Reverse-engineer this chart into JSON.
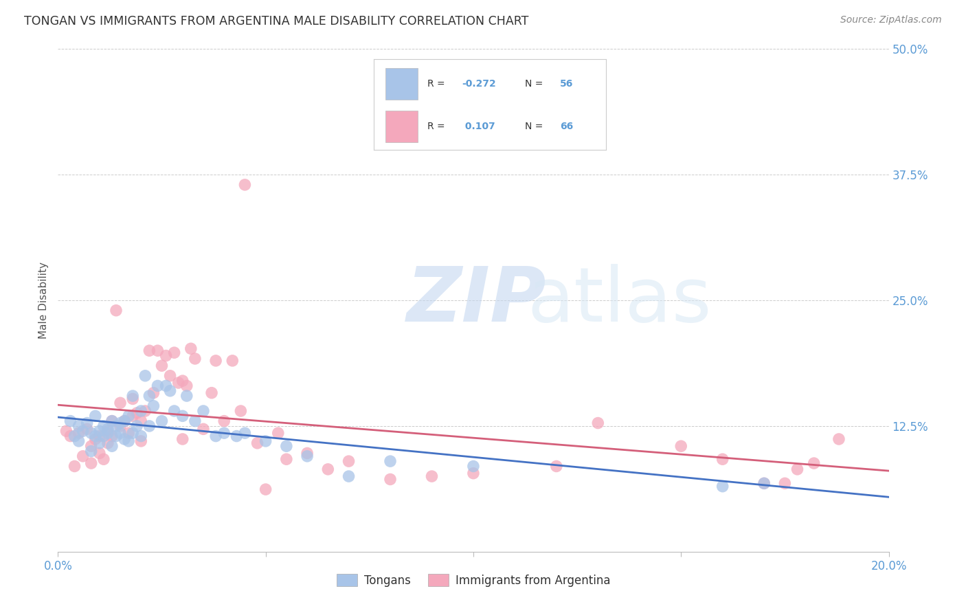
{
  "title": "TONGAN VS IMMIGRANTS FROM ARGENTINA MALE DISABILITY CORRELATION CHART",
  "source": "Source: ZipAtlas.com",
  "ylabel": "Male Disability",
  "xlim": [
    0.0,
    0.2
  ],
  "ylim": [
    0.0,
    0.5
  ],
  "xticks": [
    0.0,
    0.05,
    0.1,
    0.15,
    0.2
  ],
  "yticks": [
    0.0,
    0.125,
    0.25,
    0.375,
    0.5
  ],
  "xtick_labels": [
    "0.0%",
    "",
    "",
    "",
    "20.0%"
  ],
  "ytick_labels_right": [
    "",
    "12.5%",
    "25.0%",
    "37.5%",
    "50.0%"
  ],
  "legend_R_blue": "-0.272",
  "legend_N_blue": "56",
  "legend_R_pink": "0.107",
  "legend_N_pink": "66",
  "legend_label_blue": "Tongans",
  "legend_label_pink": "Immigrants from Argentina",
  "blue_color": "#a8c4e8",
  "pink_color": "#f4a8bc",
  "trend_blue_color": "#4472c4",
  "trend_pink_color": "#d45f7a",
  "axis_color": "#5b9bd5",
  "blue_scatter_x": [
    0.003,
    0.004,
    0.005,
    0.005,
    0.006,
    0.007,
    0.008,
    0.008,
    0.009,
    0.009,
    0.01,
    0.01,
    0.011,
    0.011,
    0.012,
    0.012,
    0.013,
    0.013,
    0.014,
    0.014,
    0.015,
    0.015,
    0.016,
    0.016,
    0.017,
    0.017,
    0.018,
    0.018,
    0.019,
    0.02,
    0.02,
    0.021,
    0.022,
    0.022,
    0.023,
    0.024,
    0.025,
    0.026,
    0.027,
    0.028,
    0.03,
    0.031,
    0.033,
    0.035,
    0.038,
    0.04,
    0.043,
    0.045,
    0.05,
    0.055,
    0.06,
    0.07,
    0.08,
    0.1,
    0.16,
    0.17
  ],
  "blue_scatter_y": [
    0.13,
    0.115,
    0.125,
    0.11,
    0.12,
    0.128,
    0.118,
    0.1,
    0.115,
    0.135,
    0.12,
    0.108,
    0.125,
    0.115,
    0.118,
    0.122,
    0.13,
    0.105,
    0.125,
    0.115,
    0.128,
    0.118,
    0.13,
    0.112,
    0.135,
    0.11,
    0.155,
    0.118,
    0.125,
    0.14,
    0.115,
    0.175,
    0.155,
    0.125,
    0.145,
    0.165,
    0.13,
    0.165,
    0.16,
    0.14,
    0.135,
    0.155,
    0.13,
    0.14,
    0.115,
    0.118,
    0.115,
    0.118,
    0.11,
    0.105,
    0.095,
    0.075,
    0.09,
    0.085,
    0.065,
    0.068
  ],
  "pink_scatter_x": [
    0.002,
    0.003,
    0.004,
    0.005,
    0.006,
    0.007,
    0.008,
    0.008,
    0.009,
    0.01,
    0.01,
    0.011,
    0.012,
    0.012,
    0.013,
    0.013,
    0.014,
    0.015,
    0.015,
    0.016,
    0.017,
    0.018,
    0.018,
    0.019,
    0.02,
    0.02,
    0.021,
    0.022,
    0.023,
    0.024,
    0.025,
    0.026,
    0.027,
    0.028,
    0.029,
    0.03,
    0.03,
    0.031,
    0.032,
    0.033,
    0.035,
    0.037,
    0.038,
    0.04,
    0.042,
    0.044,
    0.045,
    0.048,
    0.05,
    0.053,
    0.055,
    0.06,
    0.065,
    0.07,
    0.08,
    0.09,
    0.1,
    0.12,
    0.13,
    0.15,
    0.16,
    0.17,
    0.175,
    0.178,
    0.182,
    0.188
  ],
  "pink_scatter_y": [
    0.12,
    0.115,
    0.085,
    0.118,
    0.095,
    0.122,
    0.105,
    0.088,
    0.112,
    0.115,
    0.098,
    0.092,
    0.12,
    0.108,
    0.115,
    0.13,
    0.24,
    0.125,
    0.148,
    0.13,
    0.118,
    0.152,
    0.135,
    0.138,
    0.13,
    0.11,
    0.14,
    0.2,
    0.158,
    0.2,
    0.185,
    0.195,
    0.175,
    0.198,
    0.168,
    0.17,
    0.112,
    0.165,
    0.202,
    0.192,
    0.122,
    0.158,
    0.19,
    0.13,
    0.19,
    0.14,
    0.365,
    0.108,
    0.062,
    0.118,
    0.092,
    0.098,
    0.082,
    0.09,
    0.072,
    0.075,
    0.078,
    0.085,
    0.128,
    0.105,
    0.092,
    0.068,
    0.068,
    0.082,
    0.088,
    0.112
  ]
}
